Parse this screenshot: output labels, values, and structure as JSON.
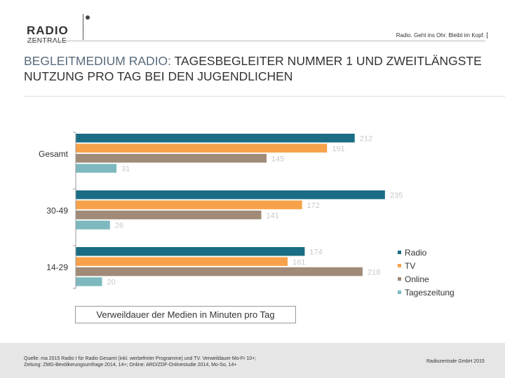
{
  "header": {
    "logo_top": "RADIO",
    "logo_bottom": "ZENTRALE",
    "tagline": "Radio. Geht ins Ohr. Bleibt im Kopf."
  },
  "title": {
    "highlight": "BEGLEITMEDIUM RADIO:",
    "rest": " TAGESBEGLEITER NUMMER 1 UND ZWEITLÄNGSTE NUTZUNG PRO TAG BEI DEN JUGENDLICHEN"
  },
  "caption": "Verweildauer der Medien in Minuten pro Tag",
  "footer": {
    "source_line1": "Quelle: ma 2015 Radio I für Radio Gesamt (inkl. werbefreier Programme) und TV. Verweildauer Mo-Fr 10+;",
    "source_line2": "Zeitung: ZMG-Bevölkerungsumfrage 2014, 14+; Online: ARD/ZDF-Onlinestudie 2014, Mo-So, 14+",
    "company": "Radiozentrale GmbH 2015"
  },
  "chart_data": {
    "type": "bar",
    "orientation": "horizontal",
    "categories": [
      "Gesamt",
      "30-49",
      "14-29"
    ],
    "series": [
      {
        "name": "Radio",
        "color": "#1a6d84",
        "values": [
          212,
          235,
          174
        ]
      },
      {
        "name": "TV",
        "color": "#f7a24a",
        "values": [
          191,
          172,
          161
        ]
      },
      {
        "name": "Online",
        "color": "#a08a78",
        "values": [
          145,
          141,
          218
        ]
      },
      {
        "name": "Tageszeitung",
        "color": "#7db9bf",
        "values": [
          31,
          26,
          20
        ]
      }
    ],
    "xlim": [
      0,
      250
    ],
    "title": "Verweildauer der Medien in Minuten pro Tag",
    "legend": "right"
  }
}
